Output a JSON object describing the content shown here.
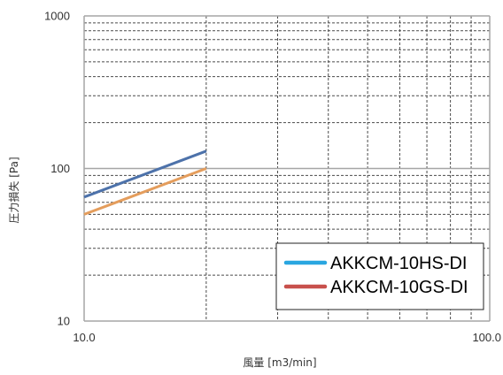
{
  "chart_data": {
    "type": "line",
    "xlabel": "風量 [m3/min]",
    "ylabel": "圧力損失 [Pa]",
    "xscale": "log",
    "yscale": "log",
    "xlim": [
      10,
      100
    ],
    "ylim": [
      10,
      1000
    ],
    "xticks": [
      {
        "value": 10,
        "label": "10.0"
      },
      {
        "value": 100,
        "label": "100.0"
      }
    ],
    "yticks": [
      {
        "value": 10,
        "label": "10"
      },
      {
        "value": 100,
        "label": "100"
      },
      {
        "value": 1000,
        "label": "1000"
      }
    ],
    "grid": {
      "major": true,
      "minor": true
    },
    "legend_position": "bottom-right",
    "series": [
      {
        "name": "AKKCM-10HS-DI",
        "x": [
          10,
          20
        ],
        "y": [
          65,
          130
        ],
        "line_color": "#4d72aa",
        "legend_color": "#2aa6e0"
      },
      {
        "name": "AKKCM-10GS-DI",
        "x": [
          10,
          20
        ],
        "y": [
          50,
          100
        ],
        "line_color": "#e49d5c",
        "legend_color": "#c8504c"
      }
    ]
  }
}
